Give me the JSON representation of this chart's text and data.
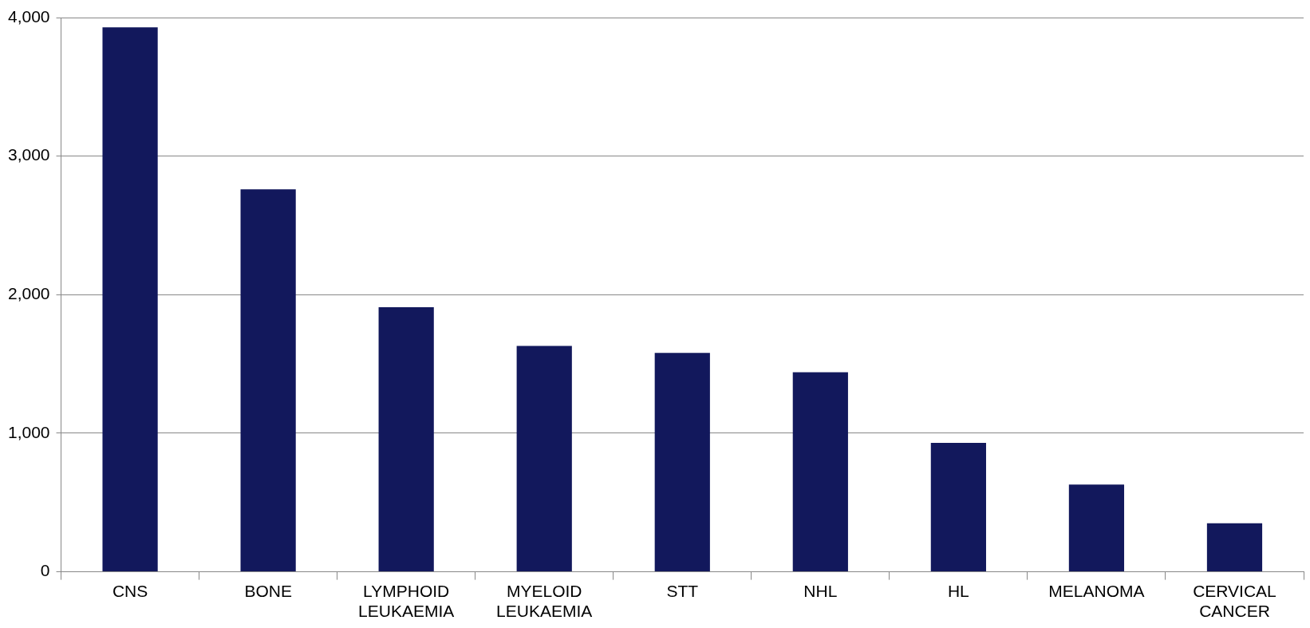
{
  "chart_data": {
    "type": "bar",
    "categories": [
      "CNS",
      "BONE",
      "LYMPHOID LEUKAEMIA",
      "MYELOID LEUKAEMIA",
      "STT",
      "NHL",
      "HL",
      "MELANOMA",
      "CERVICAL CANCER"
    ],
    "values": [
      3930,
      2760,
      1910,
      1630,
      1580,
      1440,
      930,
      630,
      350
    ],
    "color": "#12185c",
    "ylim": [
      0,
      4000
    ],
    "yticks": [
      {
        "value": 0,
        "label": "0"
      },
      {
        "value": 1000,
        "label": "1,000"
      },
      {
        "value": 2000,
        "label": "2,000"
      },
      {
        "value": 3000,
        "label": "3,000"
      },
      {
        "value": 4000,
        "label": "4,000"
      }
    ],
    "grid": "y"
  }
}
